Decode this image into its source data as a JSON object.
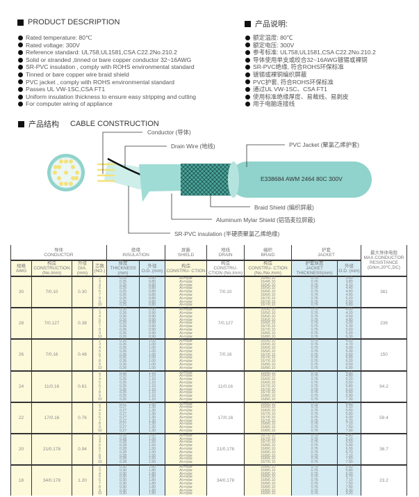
{
  "desc_en": {
    "title": "PRODUCT DESCRIPTION",
    "items": [
      "Rated temperature: 80℃",
      "Rated voltage: 300V",
      "Reference standard: UL758,UL1581,CSA C22.2No.210.2",
      "Solid or stranded ,tinned or bare copper conductor 32~16AWG",
      "SR-PVC insulation , comply with ROHS environmental standard",
      "Tinned or bare copper wire braid shield",
      "PVC jacket , comply with ROHS environmental standard",
      "Passes UL VW-1SC,CSA FT1",
      "Uniform insulation thickness to ensure easy stripping and cutting",
      "For computer wiring of appliance"
    ]
  },
  "desc_cn": {
    "title": "产品说明:",
    "items": [
      "额定温度: 80℃",
      "额定电压: 300V",
      "参考标准: UL758,UL1581,CSA C22.2No.210.2",
      "导体使用单支或绞合32~16AWG镀锡或裸铜",
      "SR-PVC绝缘, 符合ROHS环保标准",
      "镀锡或裸铜编织屏蔽",
      "PVC护套, 符合ROHS环保标准",
      "通过UL VW-1SC、CSA FT1",
      "使用标准绝缘厚度、易裁线、易剥皮",
      "用于电脑连接线"
    ]
  },
  "construction": {
    "title_cn": "产品结构",
    "title_en": "CABLE CONSTRUCTION",
    "labels": {
      "conductor": "Conductor (导体)",
      "drain": "Drain Wire (地线)",
      "jacket": "PVC Jacket (聚氯乙烯护套)",
      "braid": "Braid Shield (编织屏蔽)",
      "mylar": "Aluminum Mylar Shield (铝箔麦拉屏蔽)",
      "insulation": "SR-PVC insulation (半硬质聚氯乙烯绝缘)"
    },
    "print": "E338684  AWM 2464 80C 300V",
    "colors": {
      "jacket": "#8fd3cc",
      "conductor": "#f5e27a"
    }
  },
  "table": {
    "groups": [
      {
        "cn": "导体",
        "en": "CONDUCTOR"
      },
      {
        "cn": "绝缘",
        "en": "INSULATION"
      },
      {
        "cn": "屏蔽",
        "en": "SHIELD"
      },
      {
        "cn": "地线",
        "en": "DRAIN"
      },
      {
        "cn": "编织",
        "en": "BRAID"
      },
      {
        "cn": "护套",
        "en": "JACKET"
      }
    ],
    "headers": [
      {
        "cn": "规格",
        "en": "AWG"
      },
      {
        "cn": "构造",
        "en": "CONSTRUCTION (No./mm)"
      },
      {
        "cn": "外径",
        "en": "DIA. (mm)"
      },
      {
        "cn": "芯数",
        "en": "(NO.)"
      },
      {
        "cn": "厚度",
        "en": "THICKNESS (mm)"
      },
      {
        "cn": "外径",
        "en": "O.D. (mm)"
      },
      {
        "cn": "构造",
        "en": "CONSTRU- CTION"
      },
      {
        "cn": "构造",
        "en": "CONSTRU- CTION (No./mm)"
      },
      {
        "cn": "构造",
        "en": "CONSTRU- CTION (No./No./mm)"
      },
      {
        "cn": "护套厚度",
        "en": "JACKET THICKNESS(mm)"
      },
      {
        "cn": "外径",
        "en": "O.D. (mm)"
      },
      {
        "cn": "最大导体电阻",
        "en": "MAX.CONDUCTOR RESISTANCE (Ω/km,20℃,DC)"
      }
    ],
    "cores": [
      "2",
      "3",
      "4",
      "5",
      "6",
      "7",
      "8",
      "9",
      "10"
    ],
    "shield": "Al-mylar",
    "jacket_thickness": "0.76",
    "rows": [
      {
        "awg": "30",
        "construction": "7/0.10",
        "dia": "0.30",
        "ins_thk": "0.25",
        "ins_od": "0.80",
        "drain": "7/0.10",
        "braid": [
          "16/4/0.10",
          "16/4/0.10",
          "16/5/0.10",
          "16/5/0.10",
          "16/6/0.10",
          "16/6/0.10",
          "16/7/0.10",
          "16/7/0.10",
          "16/7/0.10"
        ],
        "jacket_od": [
          "3.60",
          "3.80",
          "4.10",
          "4.40",
          "4.60",
          "4.90",
          "5.20",
          "5.50",
          "5.80"
        ],
        "resistance": "381"
      },
      {
        "awg": "28",
        "construction": "7/0.127",
        "dia": "0.38",
        "ins_thk": "0.26",
        "ins_od": "0.90",
        "drain": "7/0.127",
        "braid": [
          "16/5/0.10",
          "16/5/0.10",
          "16/6/0.10",
          "16/6/0.10",
          "16/6/0.10",
          "16/7/0.10",
          "16/7/0.10",
          "16/8/0.10",
          "16/8/0.10"
        ],
        "jacket_od": [
          "4.00",
          "4.20",
          "4.50",
          "4.80",
          "5.00",
          "5.30",
          "5.60",
          "5.90",
          "6.30"
        ],
        "resistance": "239"
      },
      {
        "awg": "26",
        "construction": "7/0.16",
        "dia": "0.48",
        "ins_thk": "0.26",
        "ins_od": "1.00",
        "drain": "7/0.16",
        "braid": [
          "16/5/0.10",
          "16/5/0.10",
          "16/6/0.10",
          "16/6/0.10",
          "16/7/0.10",
          "16/7/0.10",
          "16/7/0.10",
          "16/8/0.10",
          "16/8/0.10"
        ],
        "jacket_od": [
          "4.50",
          "4.70",
          "5.00",
          "5.30",
          "5.60",
          "5.90",
          "6.20",
          "6.50",
          "6.90"
        ],
        "resistance": "150"
      },
      {
        "awg": "24",
        "construction": "11/0.16",
        "dia": "0.61",
        "ins_thk": "0.25",
        "ins_od": "1.10",
        "drain": "11/0.16",
        "braid": [
          "16/5/0.10",
          "16/6/0.10",
          "16/6/0.10",
          "16/6/0.10",
          "16/7/0.10",
          "16/7/0.10",
          "16/7/0.10",
          "16/8/0.10",
          "16/8/0.10"
        ],
        "jacket_od": [
          "4.50",
          "4.80",
          "5.20",
          "5.50",
          "5.80",
          "6.10",
          "6.50",
          "6.90",
          "7.30"
        ],
        "resistance": "94.2"
      },
      {
        "awg": "22",
        "construction": "17/0.16",
        "dia": "0.76",
        "ins_thk": "0.27",
        "ins_od": "1.30",
        "drain": "17/0.16",
        "braid": [
          "16/6/0.10",
          "16/6/0.10",
          "16/6/0.10",
          "16/7/0.10",
          "16/7/0.10",
          "16/7/0.10",
          "16/8/0.10",
          "16/8/0.10",
          "16/8/0.10"
        ],
        "jacket_od": [
          "4.80",
          "5.10",
          "5.50",
          "5.90",
          "6.30",
          "6.70",
          "7.10",
          "7.50",
          "7.90"
        ],
        "resistance": "59.4"
      },
      {
        "awg": "20",
        "construction": "21/0.178",
        "dia": "0.94",
        "ins_thk": "0.28",
        "ins_od": "1.50",
        "drain": "21/0.178",
        "braid": [
          "16/7/0.10",
          "16/7/0.10",
          "16/7/0.10",
          "16/8/0.10",
          "16/8/0.10",
          "16/8/0.10",
          "16/8/0.10",
          "16/8/0.10",
          "16/7/0.10"
        ],
        "jacket_od": [
          "4.80",
          "5.10",
          "5.50",
          "5.90",
          "6.30",
          "6.70",
          "7.10",
          "7.50",
          "7.90"
        ],
        "resistance": "36.7"
      },
      {
        "awg": "18",
        "construction": "34/0.178",
        "dia": "1.20",
        "ins_thk": "0.30",
        "ins_od": "1.80",
        "drain": "34/0.178",
        "braid": [
          "16/8/0.10",
          "16/8/0.10",
          "16/8/0.10",
          "16/8/0.10",
          "16/8/0.10",
          "16/8/0.10",
          "16/8/0.10",
          "16/8/0.10",
          "16/8/0.10"
        ],
        "jacket_od": [
          "5.50",
          "5.80",
          "6.20",
          "6.70",
          "7.10",
          "7.50",
          "7.90",
          "8.30",
          "9.20"
        ],
        "resistance": "23.2"
      }
    ]
  }
}
